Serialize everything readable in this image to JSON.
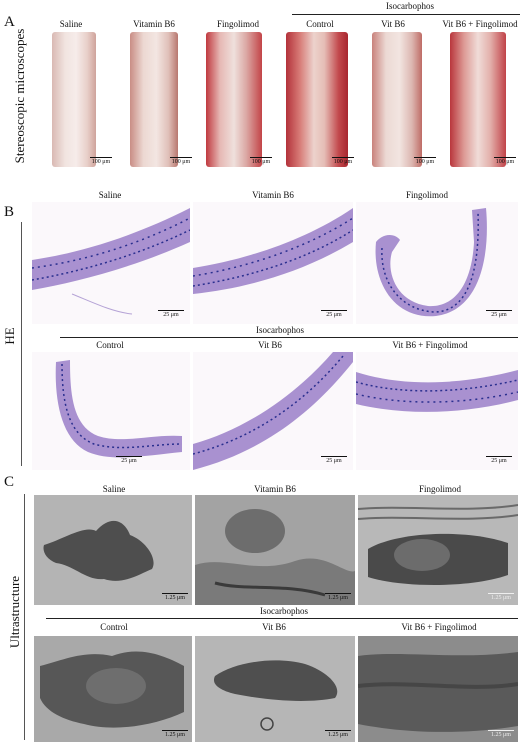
{
  "panels": {
    "a": {
      "letter": "A",
      "side_label": "Stereoscopic microscopes",
      "group_label": "Isocarbophos",
      "labels": [
        "Saline",
        "Vitamin B6",
        "Fingolimod",
        "Control",
        "Vit B6",
        "Vit B6 + Fingolimod"
      ],
      "scale": "100 μm"
    },
    "b": {
      "letter": "B",
      "side_label": "HE",
      "group_label": "Isocarbophos",
      "top_labels": [
        "Saline",
        "Vitamin B6",
        "Fingolimod"
      ],
      "bottom_labels": [
        "Control",
        "Vit B6",
        "Vit B6 + Fingolimod"
      ],
      "scale": "25 μm"
    },
    "c": {
      "letter": "C",
      "side_label": "Ultrastructure",
      "group_label": "Isocarbophos",
      "top_labels": [
        "Saline",
        "Vitamin B6",
        "Fingolimod"
      ],
      "bottom_labels": [
        "Control",
        "Vit B6",
        "Vit B6 + Fingolimod"
      ],
      "scale": "1.25 μm"
    }
  },
  "colors": {
    "he_stain": "#9a7fc8",
    "he_nuclei": "#2a2f8f",
    "stereo_tissue": "#e8d2cc",
    "stereo_blood": "#c94a4a",
    "em_background": "#a6a6a6",
    "em_cell": "#4e4e4e"
  }
}
